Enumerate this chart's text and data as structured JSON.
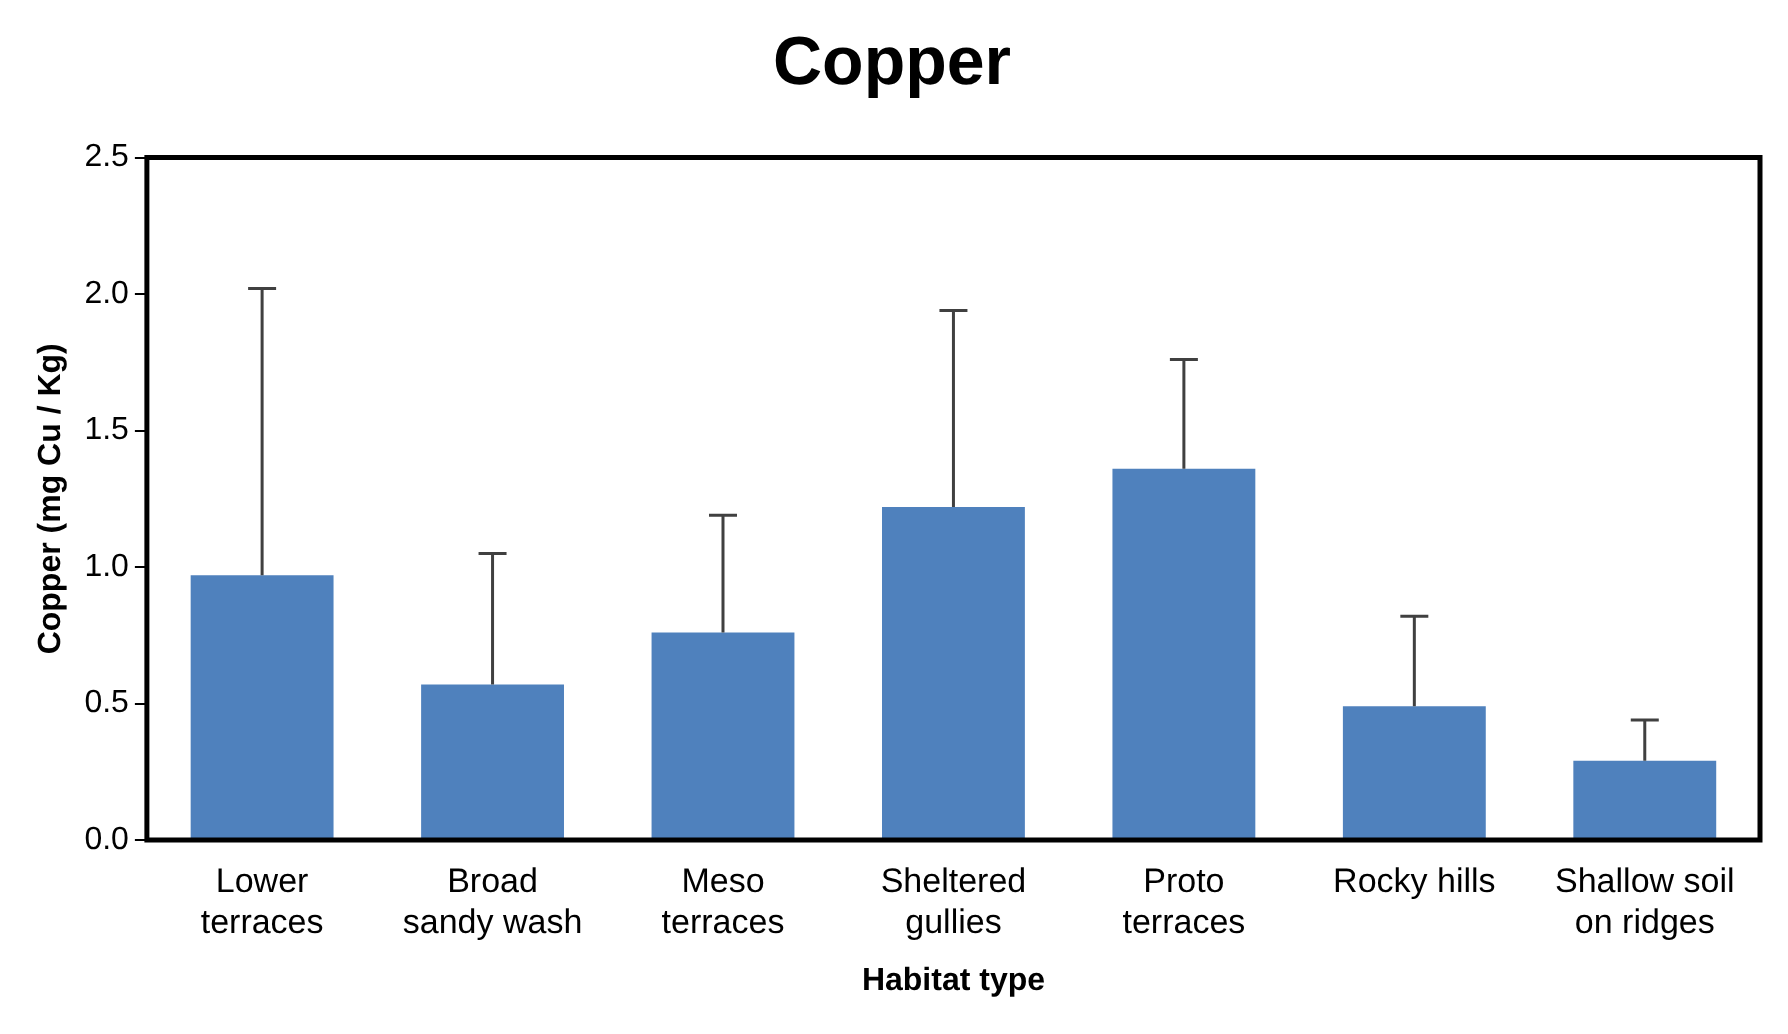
{
  "chart_data": {
    "type": "bar",
    "title": "Copper",
    "xlabel": "Habitat type",
    "ylabel": "Copper (mg Cu / Kg)",
    "categories": [
      "Lower terraces",
      "Broad sandy wash",
      "Meso terraces",
      "Sheltered gullies",
      "Proto terraces",
      "Rocky hills",
      "Shallow soil on ridges"
    ],
    "values": [
      0.97,
      0.57,
      0.76,
      1.22,
      1.36,
      0.49,
      0.29
    ],
    "errors": [
      [
        0.97,
        2.02
      ],
      [
        0.57,
        1.05
      ],
      [
        0.76,
        1.19
      ],
      [
        1.22,
        1.94
      ],
      [
        1.36,
        1.76
      ],
      [
        0.49,
        0.82
      ],
      [
        0.29,
        0.44
      ]
    ],
    "color": "#4f81bd",
    "ylim": [
      0,
      2.5
    ],
    "yticks": [
      {
        "value": 0,
        "label": "0.0"
      },
      0.5,
      {
        "value": 1,
        "label": "1.0"
      },
      1.5,
      {
        "value": 2,
        "label": "2.0"
      },
      2.5
    ],
    "grid": false,
    "legend": false
  }
}
